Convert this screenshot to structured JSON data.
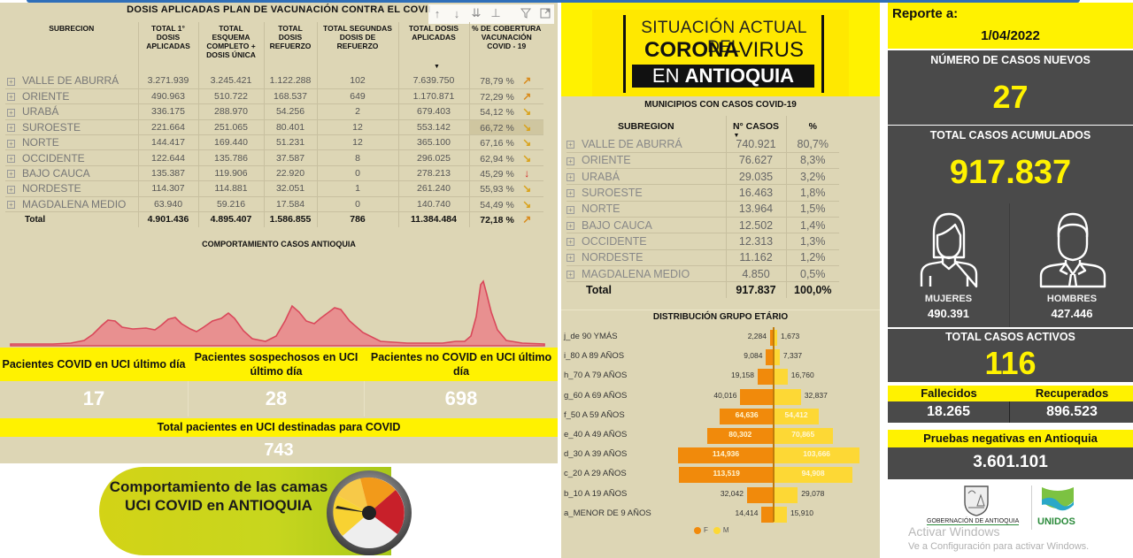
{
  "vaccination": {
    "title": "DOSIS APLICADAS PLAN DE VACUNACIÓN CONTRA EL COVII",
    "toolbar_icons": [
      "sort-up-icon",
      "sort-down-icon",
      "expand-all-down-icon",
      "hierarchy-icon",
      "filter-icon",
      "focus-mode-icon"
    ],
    "columns": [
      "SUBRECION",
      "TOTAL 1° DOSIS APLICADAS",
      "TOTAL ESQUEMA COMPLETO + DOSIS ÚNICA",
      "TOTAL DOSIS REFUERZO",
      "TOTAL SEGUNDAS DOSIS DE REFUERZO",
      "TOTAL DOSIS APLICADAS",
      "% DE COBERTURA VACUNACIÓN COVID - 19"
    ],
    "rows": [
      {
        "region": "VALLE DE ABURRÁ",
        "first": "3.271.939",
        "complete": "3.245.421",
        "booster": "1.122.288",
        "second_booster": "102",
        "total": "7.639.750",
        "coverage": "78,79 %",
        "trend": "up"
      },
      {
        "region": "ORIENTE",
        "first": "490.963",
        "complete": "510.722",
        "booster": "168.537",
        "second_booster": "649",
        "total": "1.170.871",
        "coverage": "72,29 %",
        "trend": "up"
      },
      {
        "region": "URABÁ",
        "first": "336.175",
        "complete": "288.970",
        "booster": "54.256",
        "second_booster": "2",
        "total": "679.403",
        "coverage": "54,12 %",
        "trend": "down"
      },
      {
        "region": "SUROESTE",
        "first": "221.664",
        "complete": "251.065",
        "booster": "80.401",
        "second_booster": "12",
        "total": "553.142",
        "coverage": "66,72 %",
        "trend": "down"
      },
      {
        "region": "NORTE",
        "first": "144.417",
        "complete": "169.440",
        "booster": "51.231",
        "second_booster": "12",
        "total": "365.100",
        "coverage": "67,16 %",
        "trend": "down"
      },
      {
        "region": "OCCIDENTE",
        "first": "122.644",
        "complete": "135.786",
        "booster": "37.587",
        "second_booster": "8",
        "total": "296.025",
        "coverage": "62,94 %",
        "trend": "down"
      },
      {
        "region": "BAJO CAUCA",
        "first": "135.387",
        "complete": "119.906",
        "booster": "22.920",
        "second_booster": "0",
        "total": "278.213",
        "coverage": "45,29 %",
        "trend": "bad"
      },
      {
        "region": "NORDESTE",
        "first": "114.307",
        "complete": "114.881",
        "booster": "32.051",
        "second_booster": "1",
        "total": "261.240",
        "coverage": "55,93 %",
        "trend": "down"
      },
      {
        "region": "MAGDALENA MEDIO",
        "first": "63.940",
        "complete": "59.216",
        "booster": "17.584",
        "second_booster": "0",
        "total": "140.740",
        "coverage": "54,49 %",
        "trend": "down"
      }
    ],
    "total": {
      "region": "Total",
      "first": "4.901.436",
      "complete": "4.895.407",
      "booster": "1.586.855",
      "second_booster": "786",
      "total": "11.384.484",
      "coverage": "72,18 %",
      "trend": "up"
    },
    "trend_glyphs": {
      "up": "↗",
      "down": "↘",
      "bad": "↓"
    }
  },
  "cases_chart": {
    "title": "COMPORTAMIENTO CASOS ANTIOQUIA",
    "line_color": "#d9485a",
    "fill_color": "#e89090"
  },
  "uci": {
    "covid_label": "Pacientes COVID en UCI último día",
    "covid_value": "17",
    "suspect_label": "Pacientes sospechosos en UCI último día",
    "suspect_value": "28",
    "noncovid_label": "Pacientes no COVID en UCI último día",
    "noncovid_value": "698",
    "total_label": "Total pacientes en UCI destinadas para COVID",
    "total_value": "743"
  },
  "banner": {
    "text": "Comportamiento de las camas UCI COVID en ANTIOQUIA"
  },
  "hero": {
    "line1": "SITUACIÓN ACTUAL DEL",
    "line2_bold": "CORONA",
    "line2_light": "VIRUS",
    "line3_light": "EN ",
    "line3_bold": "ANTIOQUIA"
  },
  "municipios": {
    "title": "MUNICIPIOS CON CASOS COVID-19",
    "columns": [
      "SUBREGION",
      "N° CASOS",
      "%"
    ],
    "rows": [
      {
        "region": "VALLE DE ABURRÁ",
        "cases": "740.921",
        "pct": "80,7%"
      },
      {
        "region": "ORIENTE",
        "cases": "76.627",
        "pct": "8,3%"
      },
      {
        "region": "URABÁ",
        "cases": "29.035",
        "pct": "3,2%"
      },
      {
        "region": "SUROESTE",
        "cases": "16.463",
        "pct": "1,8%"
      },
      {
        "region": "NORTE",
        "cases": "13.964",
        "pct": "1,5%"
      },
      {
        "region": "BAJO CAUCA",
        "cases": "12.502",
        "pct": "1,4%"
      },
      {
        "region": "OCCIDENTE",
        "cases": "12.313",
        "pct": "1,3%"
      },
      {
        "region": "NORDESTE",
        "cases": "11.162",
        "pct": "1,2%"
      },
      {
        "region": "MAGDALENA MEDIO",
        "cases": "4.850",
        "pct": "0,5%"
      }
    ],
    "total": {
      "region": "Total",
      "cases": "917.837",
      "pct": "100,0%"
    }
  },
  "age_distribution": {
    "title": "DISTRIBUCIÓN GRUPO ETÁRIO",
    "legend_f": "F",
    "legend_m": "M",
    "colors": {
      "F": "#f18a0b",
      "M": "#fdd835"
    },
    "groups": [
      {
        "label": "j_de 90 YMÁS",
        "F": "2,284",
        "M": "1,673",
        "f": 2284,
        "m": 1673
      },
      {
        "label": "i_80 A 89 AÑOS",
        "F": "9,084",
        "M": "7,337",
        "f": 9084,
        "m": 7337
      },
      {
        "label": "h_70 A 79 AÑOS",
        "F": "19,158",
        "M": "16,760",
        "f": 19158,
        "m": 16760
      },
      {
        "label": "g_60 A 69 AÑOS",
        "F": "40,016",
        "M": "32,837",
        "f": 40016,
        "m": 32837
      },
      {
        "label": "f_50 A 59 AÑOS",
        "F": "64,636",
        "M": "54,412",
        "f": 64636,
        "m": 54412
      },
      {
        "label": "e_40 A 49 AÑOS",
        "F": "80,302",
        "M": "70,865",
        "f": 80302,
        "m": 70865
      },
      {
        "label": "d_30 A 39 AÑOS",
        "F": "114,936",
        "M": "103,666",
        "f": 114936,
        "m": 103666
      },
      {
        "label": "c_20 A 29 AÑOS",
        "F": "113,519",
        "M": "94,908",
        "f": 113519,
        "m": 94908
      },
      {
        "label": "b_10 A 19 AÑOS",
        "F": "32,042",
        "M": "29,078",
        "f": 32042,
        "m": 29078
      },
      {
        "label": "a_MENOR DE 9 AÑOS",
        "F": "14,414",
        "M": "15,910",
        "f": 14414,
        "m": 15910
      }
    ]
  },
  "report": {
    "label": "Reporte a:",
    "date": "1/04/2022",
    "new_cases_label": "NÚMERO DE CASOS NUEVOS",
    "new_cases": "27",
    "total_label": "TOTAL CASOS ACUMULADOS",
    "total": "917.837",
    "women_label": "MUJERES",
    "women": "490.391",
    "men_label": "HOMBRES",
    "men": "427.446",
    "active_label": "TOTAL CASOS ACTIVOS",
    "active": "116",
    "deaths_label": "Fallecidos",
    "deaths": "18.265",
    "recovered_label": "Recuperados",
    "recovered": "896.523",
    "negative_label": "Pruebas negativas en Antioquia",
    "negative": "3.601.101"
  },
  "logos": {
    "gob": "GOBERNACIÓN DE ANTIOQUIA",
    "unidos": "UNIDOS"
  },
  "watermark": {
    "line1": "Activar Windows",
    "line2": "Ve a Configuración para activar Windows."
  }
}
